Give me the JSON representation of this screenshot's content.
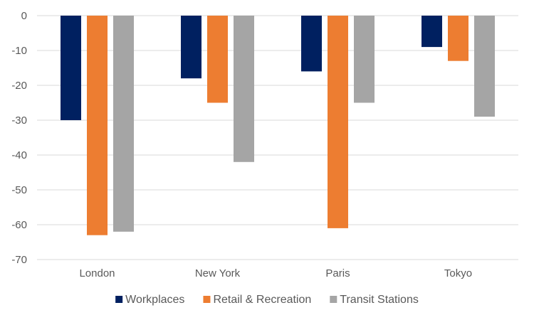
{
  "chart_data": {
    "type": "bar",
    "title": "",
    "xlabel": "",
    "ylabel": "",
    "categories": [
      "London",
      "New York",
      "Paris",
      "Tokyo"
    ],
    "series": [
      {
        "name": "Workplaces",
        "color": "#002060",
        "values": [
          -30,
          -18,
          -16,
          -9
        ]
      },
      {
        "name": "Retail & Recreation",
        "color": "#ED7D31",
        "values": [
          -63,
          -25,
          -61,
          -13
        ]
      },
      {
        "name": "Transit Stations",
        "color": "#A5A5A5",
        "values": [
          -62,
          -42,
          -25,
          -29
        ]
      }
    ],
    "ylim": [
      -70,
      0
    ],
    "yticks": [
      0,
      -10,
      -20,
      -30,
      -40,
      -50,
      -60,
      -70
    ],
    "grid": true,
    "legend_position": "bottom"
  }
}
